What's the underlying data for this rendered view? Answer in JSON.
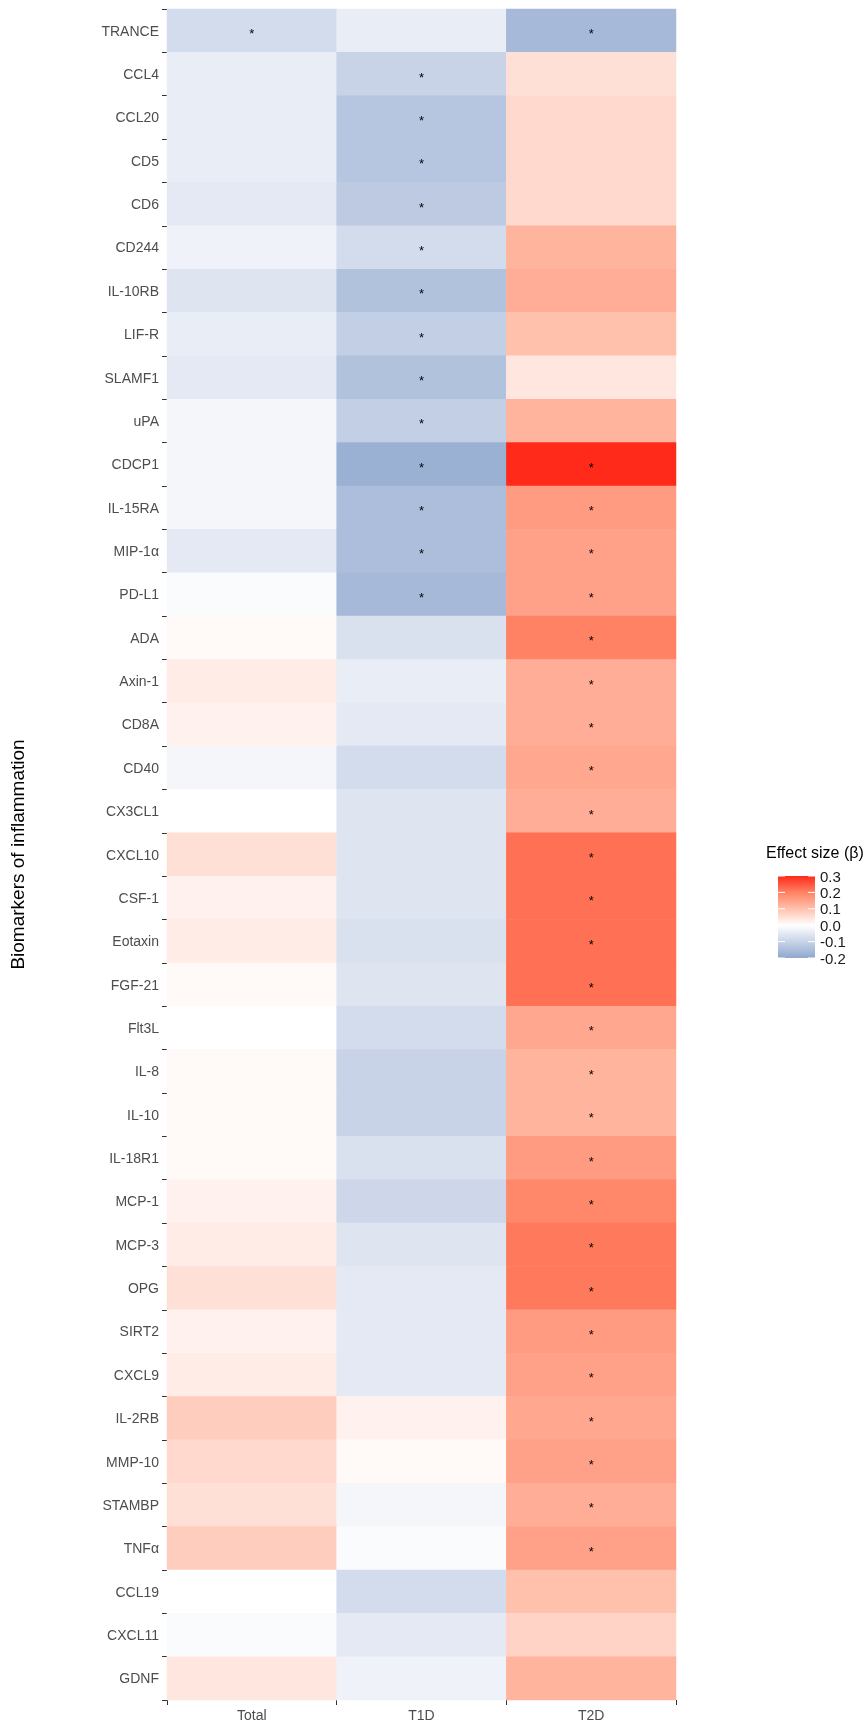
{
  "chart_data": {
    "type": "heatmap",
    "ylabel": "Biomarkers of inflammation",
    "clabel": "Effect size (β)",
    "categories": [
      "Total",
      "T1D",
      "T2D"
    ],
    "y_categories": [
      "TRANCE",
      "CCL4",
      "CCL20",
      "CD5",
      "CD6",
      "CD244",
      "IL-10RB",
      "LIF-R",
      "SLAMF1",
      "uPA",
      "CDCP1",
      "IL-15RA",
      "MIP-1α",
      "PD-L1",
      "ADA",
      "Axin-1",
      "CD8A",
      "CD40",
      "CX3CL1",
      "CXCL10",
      "CSF-1",
      "Eotaxin",
      "FGF-21",
      "Flt3L",
      "IL-8",
      "IL-10",
      "IL-18R1",
      "MCP-1",
      "MCP-3",
      "OPG",
      "SIRT2",
      "CXCL9",
      "IL-2RB",
      "MMP-10",
      "STAMBP",
      "TNFα",
      "CCL19",
      "CXCL11",
      "GDNF"
    ],
    "cells": [
      [
        -0.08,
        -0.04,
        -0.16
      ],
      [
        -0.04,
        -0.1,
        0.05
      ],
      [
        -0.04,
        -0.13,
        0.06
      ],
      [
        -0.04,
        -0.13,
        0.06
      ],
      [
        -0.05,
        -0.12,
        0.06
      ],
      [
        -0.03,
        -0.08,
        0.12
      ],
      [
        -0.06,
        -0.14,
        0.13
      ],
      [
        -0.04,
        -0.11,
        0.1
      ],
      [
        -0.05,
        -0.14,
        0.04
      ],
      [
        -0.02,
        -0.11,
        0.12
      ],
      [
        -0.02,
        -0.18,
        0.3
      ],
      [
        -0.02,
        -0.15,
        0.16
      ],
      [
        -0.05,
        -0.15,
        0.15
      ],
      [
        -0.01,
        -0.16,
        0.15
      ],
      [
        0.01,
        -0.07,
        0.2
      ],
      [
        0.03,
        -0.04,
        0.13
      ],
      [
        0.02,
        -0.05,
        0.13
      ],
      [
        -0.02,
        -0.08,
        0.14
      ],
      [
        0,
        -0.06,
        0.13
      ],
      [
        0.05,
        -0.06,
        0.22
      ],
      [
        0.02,
        -0.06,
        0.22
      ],
      [
        0.03,
        -0.07,
        0.22
      ],
      [
        0.01,
        -0.06,
        0.22
      ],
      [
        0,
        -0.08,
        0.14
      ],
      [
        0.01,
        -0.1,
        0.12
      ],
      [
        0.01,
        -0.1,
        0.12
      ],
      [
        0.01,
        -0.07,
        0.16
      ],
      [
        0.02,
        -0.09,
        0.19
      ],
      [
        0.03,
        -0.06,
        0.21
      ],
      [
        0.05,
        -0.05,
        0.21
      ],
      [
        0.02,
        -0.05,
        0.16
      ],
      [
        0.03,
        -0.05,
        0.15
      ],
      [
        0.08,
        0.02,
        0.14
      ],
      [
        0.06,
        0.01,
        0.15
      ],
      [
        0.05,
        -0.02,
        0.13
      ],
      [
        0.08,
        -0.01,
        0.15
      ],
      [
        0,
        -0.08,
        0.1
      ],
      [
        -0.01,
        -0.05,
        0.07
      ],
      [
        0.04,
        -0.03,
        0.12
      ]
    ],
    "cell_labels": [
      [
        "*",
        null,
        "*"
      ],
      [
        null,
        "*",
        null
      ],
      [
        null,
        "*",
        null
      ],
      [
        null,
        "*",
        null
      ],
      [
        null,
        "*",
        null
      ],
      [
        null,
        "*",
        null
      ],
      [
        null,
        "*",
        null
      ],
      [
        null,
        "*",
        null
      ],
      [
        null,
        "*",
        null
      ],
      [
        null,
        "*",
        null
      ],
      [
        null,
        "*",
        "*"
      ],
      [
        null,
        "*",
        "*"
      ],
      [
        null,
        "*",
        "*"
      ],
      [
        null,
        "*",
        "*"
      ],
      [
        null,
        null,
        "*"
      ],
      [
        null,
        null,
        "*"
      ],
      [
        null,
        null,
        "*"
      ],
      [
        null,
        null,
        "*"
      ],
      [
        null,
        null,
        "*"
      ],
      [
        null,
        null,
        "*"
      ],
      [
        null,
        null,
        "*"
      ],
      [
        null,
        null,
        "*"
      ],
      [
        null,
        null,
        "*"
      ],
      [
        null,
        null,
        "*"
      ],
      [
        null,
        null,
        "*"
      ],
      [
        null,
        null,
        "*"
      ],
      [
        null,
        null,
        "*"
      ],
      [
        null,
        null,
        "*"
      ],
      [
        null,
        null,
        "*"
      ],
      [
        null,
        null,
        "*"
      ],
      [
        null,
        null,
        "*"
      ],
      [
        null,
        null,
        "*"
      ],
      [
        null,
        null,
        "*"
      ],
      [
        null,
        null,
        "*"
      ],
      [
        null,
        null,
        "*"
      ],
      [
        null,
        null,
        "*"
      ],
      [
        null,
        null,
        null
      ],
      [
        null,
        null,
        null
      ],
      [
        null,
        null,
        null
      ]
    ],
    "clim": [
      -0.2,
      0.3
    ],
    "cticks": [
      {
        "value": -0.2,
        "label": "-0.2"
      },
      {
        "value": -0.1,
        "label": "-0.1"
      },
      {
        "value": 0,
        "label": "0.0"
      },
      {
        "value": 0.1,
        "label": "0.1"
      },
      {
        "value": 0.2,
        "label": "0.2"
      },
      {
        "value": 0.3,
        "label": "0.3"
      }
    ]
  }
}
